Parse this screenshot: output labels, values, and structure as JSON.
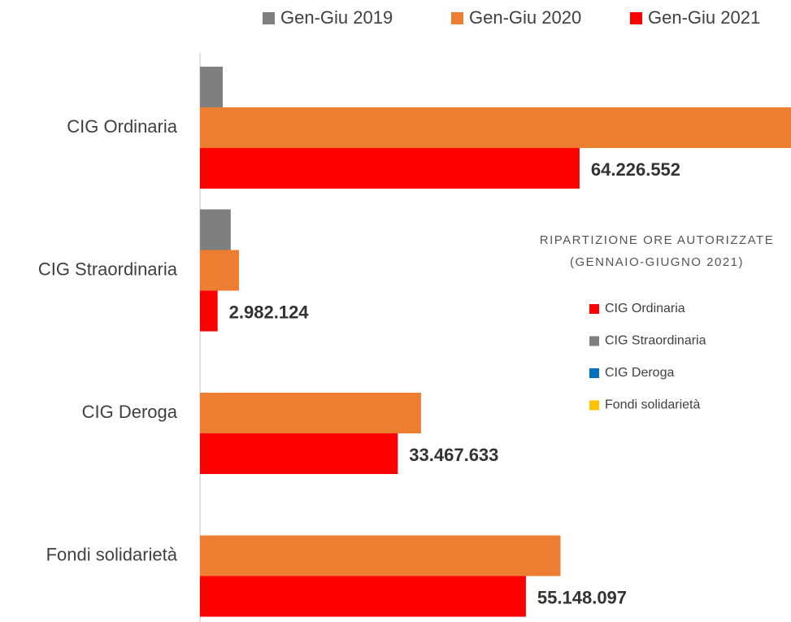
{
  "chart_data": {
    "type": "bar",
    "orientation": "horizontal",
    "categories": [
      "CIG Ordinaria",
      "CIG Straordinaria",
      "CIG Deroga",
      "Fondi solidarietà"
    ],
    "series": [
      {
        "name": "Gen-Giu 2019",
        "color": "#7f7f7f",
        "values": [
          3850000,
          5200000,
          null,
          null
        ]
      },
      {
        "name": "Gen-Giu 2020",
        "color": "#ed7d31",
        "values": [
          100000000,
          6600000,
          37400000,
          61000000
        ]
      },
      {
        "name": "Gen-Giu 2021",
        "color": "#ff0000",
        "values": [
          64226552,
          2982124,
          33467633,
          55148097
        ],
        "value_labels": [
          "64.226.552",
          "2.982.124",
          "33.467.633",
          "55.148.097"
        ]
      }
    ],
    "xlim": [
      0,
      100000000
    ],
    "legend": "top",
    "inset_legend": {
      "title": [
        "RIPARTIZIONE ORE AUTORIZZATE",
        "(GENNAIO-GIUGNO 2021)"
      ],
      "items": [
        {
          "name": "CIG Ordinaria",
          "color": "#ff0000"
        },
        {
          "name": "CIG Straordinaria",
          "color": "#7f7f7f"
        },
        {
          "name": "CIG Deroga",
          "color": "#0070c0"
        },
        {
          "name": "Fondi solidarietà",
          "color": "#ffc000"
        }
      ]
    }
  }
}
